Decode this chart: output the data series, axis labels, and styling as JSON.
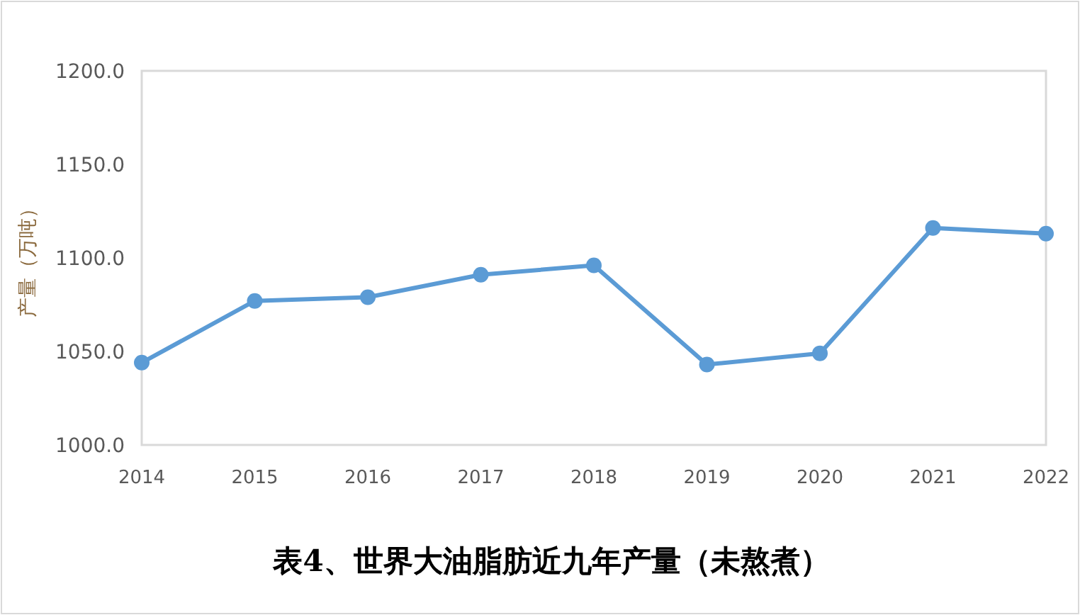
{
  "chart_data": {
    "type": "line",
    "title": "表4、世界大油脂肪近九年产量（未熬煮）",
    "ylabel": "产量（万吨）",
    "categories": [
      "2014",
      "2015",
      "2016",
      "2017",
      "2018",
      "2019",
      "2020",
      "2021",
      "2022"
    ],
    "series": [
      {
        "color": "#5b9bd5",
        "values": [
          1044,
          1077,
          1079,
          1091,
          1096,
          1043,
          1049,
          1116,
          1113
        ]
      }
    ],
    "ylim": [
      1000,
      1200
    ],
    "yticks": [
      {
        "value": 1000,
        "label": "1000.0"
      },
      {
        "value": 1050,
        "label": "1050.0"
      },
      {
        "value": 1100,
        "label": "1100.0"
      },
      {
        "value": 1150,
        "label": "1150.0"
      },
      {
        "value": 1200,
        "label": "1200.0"
      }
    ],
    "marker": "circle",
    "line_style": "solid",
    "grid": false
  }
}
